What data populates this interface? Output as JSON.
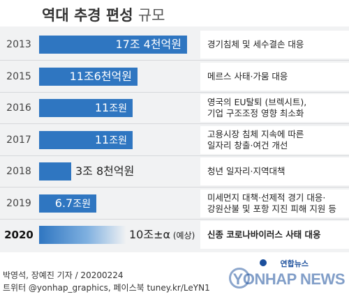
{
  "title": {
    "main": "역대 추경 편성",
    "sub": "규모"
  },
  "chart_data": {
    "type": "bar",
    "orientation": "horizontal",
    "title": "역대 추경 편성 규모",
    "unit": "조원",
    "categories": [
      "2013",
      "2015",
      "2016",
      "2017",
      "2018",
      "2019",
      "2020"
    ],
    "values": [
      17.4,
      11.6,
      11,
      11,
      3.8,
      6.7,
      10
    ],
    "value_labels": [
      {
        "num": "17조 4천억원",
        "unit": "",
        "note": ""
      },
      {
        "num": "11조6천억원",
        "unit": "",
        "note": ""
      },
      {
        "num": "11",
        "unit": "조원",
        "note": ""
      },
      {
        "num": "11",
        "unit": "조원",
        "note": ""
      },
      {
        "num": "3조 8천억원",
        "unit": "",
        "note": ""
      },
      {
        "num": "6.7",
        "unit": "조원",
        "note": ""
      },
      {
        "num": "10조±α",
        "unit": "",
        "note": "(예상)"
      }
    ],
    "descriptions": [
      "경기침체 및 세수결손 대응",
      "메르스 사태·가뭄 대응",
      "영국의 EU탈퇴 (브렉시트),\n기업 구조조정 영향 최소화",
      "고용시장 침체 지속에 따른\n일자리 창출·여건 개선",
      "청년 일자리·지역대책",
      "미세먼지 대책·선제적 경기 대응·\n강원산불 및 포항 지진 피해 지원 등",
      "신종 코로나바이러스 사태 대응"
    ],
    "highlight": "2020",
    "colors": {
      "bar": "#2f76c1",
      "panel": "#f1f2f3"
    }
  },
  "footer": {
    "credit": "박영석, 장예진 기자 / 20200224",
    "social": "트위터 @yonhap_graphics, 페이스북 tuney.kr/LeYN1"
  },
  "logo": {
    "kr": "연합뉴스",
    "en": "YONHAP NEWS"
  }
}
